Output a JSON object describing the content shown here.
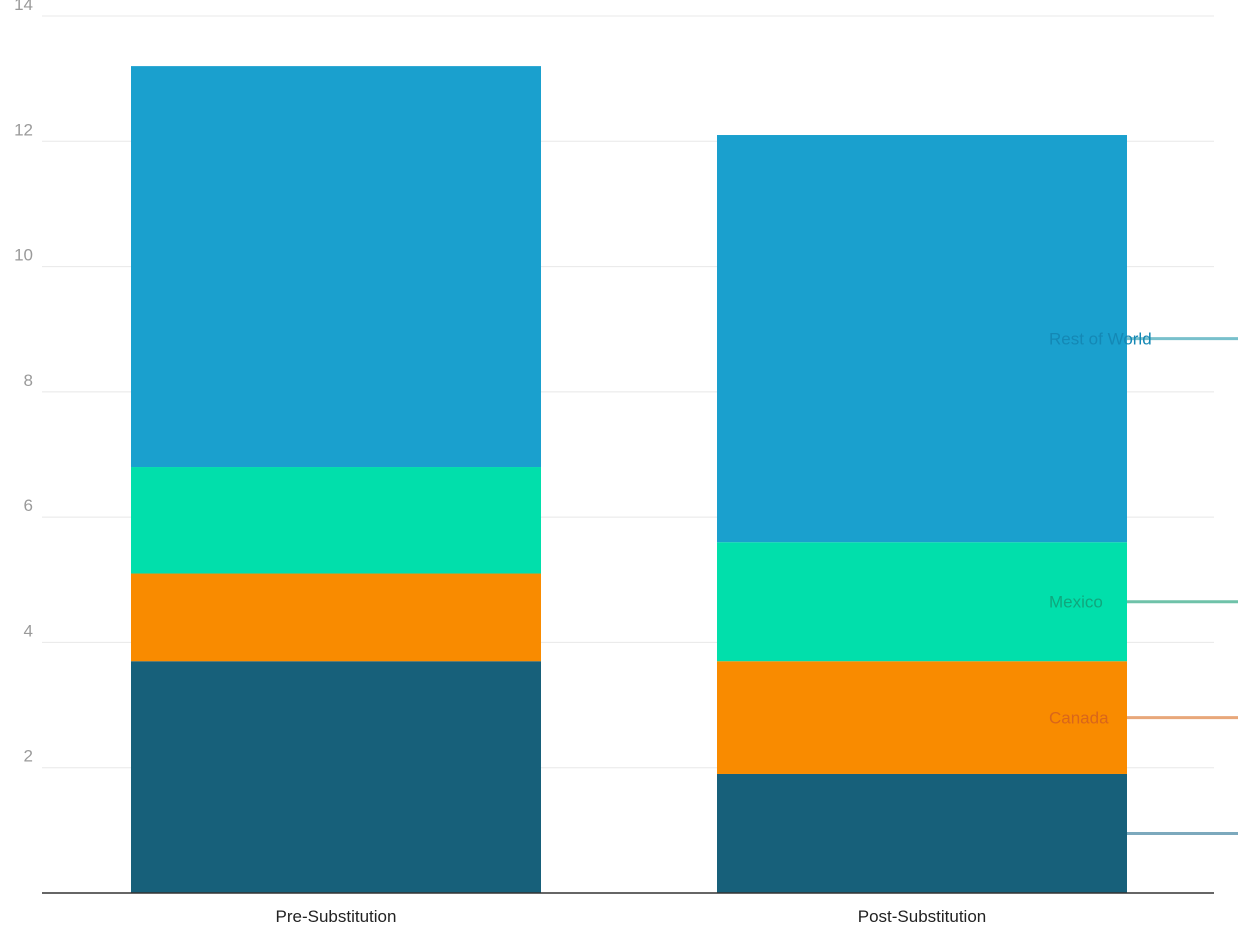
{
  "chart_data": {
    "type": "bar",
    "stacked": true,
    "categories": [
      "Pre-Substitution",
      "Post-Substitution"
    ],
    "series": [
      {
        "name": "",
        "values": [
          3.7,
          1.9
        ],
        "color": "#17607a",
        "label_color": "#17607a",
        "line_color": "#7ca9bd"
      },
      {
        "name": "Canada",
        "values": [
          1.4,
          1.8
        ],
        "color": "#f98b00",
        "label_color": "#d9661a",
        "line_color": "#e8a77a"
      },
      {
        "name": "Mexico",
        "values": [
          1.7,
          1.9
        ],
        "color": "#01dfab",
        "label_color": "#10a67d",
        "line_color": "#6fc2a9"
      },
      {
        "name": "Rest of World",
        "values": [
          6.4,
          6.5
        ],
        "color": "#1aa0ce",
        "label_color": "#1488b5",
        "line_color": "#78c0cc"
      }
    ],
    "yticks": [
      "2",
      "4",
      "6",
      "8",
      "10",
      "12",
      "14"
    ],
    "ylim": [
      0,
      14
    ],
    "title": "",
    "xlabel": "",
    "ylabel": "",
    "grid": true,
    "legend": "inline labels on right of last bar"
  }
}
